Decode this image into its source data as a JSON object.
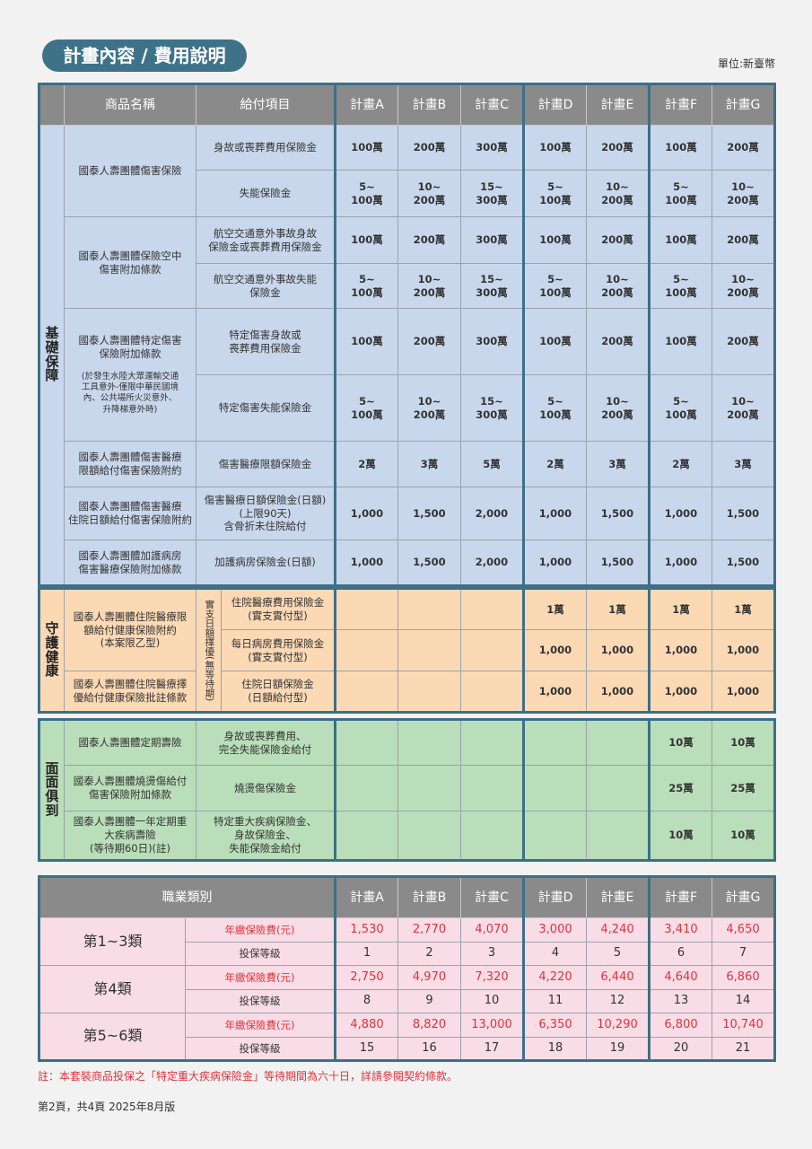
{
  "header": {
    "title": "計畫內容 / 費用說明",
    "unit": "單位:新臺幣"
  },
  "columns": {
    "product": "商品名稱",
    "item": "給付項目",
    "plans": [
      "計畫A",
      "計畫B",
      "計畫C",
      "計畫D",
      "計畫E",
      "計畫F",
      "計畫G"
    ]
  },
  "sections": [
    {
      "label": "基礎保障",
      "color": "#c9d7ec",
      "groups": [
        {
          "product": "國泰人壽團體傷害保險",
          "items": [
            {
              "item": "身故或喪葬費用保險金",
              "values": [
                "100萬",
                "200萬",
                "300萬",
                "100萬",
                "200萬",
                "100萬",
                "200萬"
              ]
            },
            {
              "item": "失能保險金",
              "values": [
                "5~\n100萬",
                "10~\n200萬",
                "15~\n300萬",
                "5~\n100萬",
                "10~\n200萬",
                "5~\n100萬",
                "10~\n200萬"
              ]
            }
          ]
        },
        {
          "product": "國泰人壽團體保險空中\n傷害附加條款",
          "items": [
            {
              "item": "航空交通意外事故身故\n保險金或喪葬費用保險金",
              "values": [
                "100萬",
                "200萬",
                "300萬",
                "100萬",
                "200萬",
                "100萬",
                "200萬"
              ]
            },
            {
              "item": "航空交通意外事故失能\n保險金",
              "values": [
                "5~\n100萬",
                "10~\n200萬",
                "15~\n300萬",
                "5~\n100萬",
                "10~\n200萬",
                "5~\n100萬",
                "10~\n200萬"
              ]
            }
          ]
        },
        {
          "product": "國泰人壽團體特定傷害\n保險附加條款",
          "note": "(於發生水陸大眾運輸交通\n工具意外-僅限中華民國境\n內、公共場所火災意外、\n升降梯意外時)",
          "items": [
            {
              "item": "特定傷害身故或\n喪葬費用保險金",
              "values": [
                "100萬",
                "200萬",
                "300萬",
                "100萬",
                "200萬",
                "100萬",
                "200萬"
              ]
            },
            {
              "item": "特定傷害失能保險金",
              "values": [
                "5~\n100萬",
                "10~\n200萬",
                "15~\n300萬",
                "5~\n100萬",
                "10~\n200萬",
                "5~\n100萬",
                "10~\n200萬"
              ]
            }
          ]
        },
        {
          "product": "國泰人壽團體傷害醫療\n限額給付傷害保險附約",
          "items": [
            {
              "item": "傷害醫療限額保險金",
              "values": [
                "2萬",
                "3萬",
                "5萬",
                "2萬",
                "3萬",
                "2萬",
                "3萬"
              ]
            }
          ]
        },
        {
          "product": "國泰人壽團體傷害醫療\n住院日額給付傷害保險附約",
          "items": [
            {
              "item": "傷害醫療日額保險金(日額)\n(上限90天)\n含骨折未住院給付",
              "values": [
                "1,000",
                "1,500",
                "2,000",
                "1,000",
                "1,500",
                "1,000",
                "1,500"
              ]
            }
          ]
        },
        {
          "product": "國泰人壽團體加護病房\n傷害醫療保險附加條款",
          "items": [
            {
              "item": "加護病房保險金(日額)",
              "values": [
                "1,000",
                "1,500",
                "2,000",
                "1,000",
                "1,500",
                "1,000",
                "1,500"
              ]
            }
          ]
        }
      ]
    },
    {
      "label": "守護健康",
      "color": "#fbd9b5",
      "sublabel": "實支日額擇優(無等待期)",
      "groups": [
        {
          "product": "國泰人壽團體住院醫療限\n額給付健康保險附約\n(本案限乙型)",
          "span": 2
        },
        {
          "product": "國泰人壽團體住院醫療擇\n優給付健康保險批註條款",
          "span": 1
        }
      ],
      "items": [
        {
          "item": "住院醫療費用保險金\n(實支實付型)",
          "values": [
            "",
            "",
            "",
            "1萬",
            "1萬",
            "1萬",
            "1萬"
          ]
        },
        {
          "item": "每日病房費用保險金\n(實支實付型)",
          "values": [
            "",
            "",
            "",
            "1,000",
            "1,000",
            "1,000",
            "1,000"
          ]
        },
        {
          "item": "住院日額保險金\n(日額給付型)",
          "values": [
            "",
            "",
            "",
            "1,000",
            "1,000",
            "1,000",
            "1,000"
          ]
        }
      ]
    },
    {
      "label": "面面俱到",
      "color": "#b9deb9",
      "groups": [
        {
          "product": "國泰人壽團體定期壽險",
          "items": [
            {
              "item": "身故或喪葬費用、\n完全失能保險金給付",
              "values": [
                "",
                "",
                "",
                "",
                "",
                "10萬",
                "10萬"
              ]
            }
          ]
        },
        {
          "product": "國泰人壽團體燒燙傷給付\n傷害保險附加條款",
          "items": [
            {
              "item": "燒燙傷保險金",
              "values": [
                "",
                "",
                "",
                "",
                "",
                "25萬",
                "25萬"
              ]
            }
          ]
        },
        {
          "product": "國泰人壽團體一年定期重\n大疾病壽險\n(等待期60日)(註)",
          "items": [
            {
              "item": "特定重大疾病保險金、\n身故保險金、\n失能保險金給付",
              "values": [
                "",
                "",
                "",
                "",
                "",
                "10萬",
                "10萬"
              ]
            }
          ]
        }
      ]
    }
  ],
  "premium": {
    "header": "職業類別",
    "premium_label": "年繳保險費(元)",
    "level_label": "投保等級",
    "classes": [
      {
        "name": "第1~3類",
        "premiums": [
          "1,530",
          "2,770",
          "4,070",
          "3,000",
          "4,240",
          "3,410",
          "4,650"
        ],
        "levels": [
          "1",
          "2",
          "3",
          "4",
          "5",
          "6",
          "7"
        ]
      },
      {
        "name": "第4類",
        "premiums": [
          "2,750",
          "4,970",
          "7,320",
          "4,220",
          "6,440",
          "4,640",
          "6,860"
        ],
        "levels": [
          "8",
          "9",
          "10",
          "11",
          "12",
          "13",
          "14"
        ]
      },
      {
        "name": "第5~6類",
        "premiums": [
          "4,880",
          "8,820",
          "13,000",
          "6,350",
          "10,290",
          "6,800",
          "10,740"
        ],
        "levels": [
          "15",
          "16",
          "17",
          "18",
          "19",
          "20",
          "21"
        ]
      }
    ]
  },
  "footnote": "註：本套裝商品投保之「特定重大疾病保險金」等待期間為六十日，詳請參閱契約條款。",
  "page_info": "第2頁，共4頁  2025年8月版",
  "colors": {
    "brand": "#3e7289",
    "border": "#3d6f87",
    "header_gray": "#8a8a8a",
    "premium_red": "#e0323c",
    "pink": "#f9dde6"
  }
}
